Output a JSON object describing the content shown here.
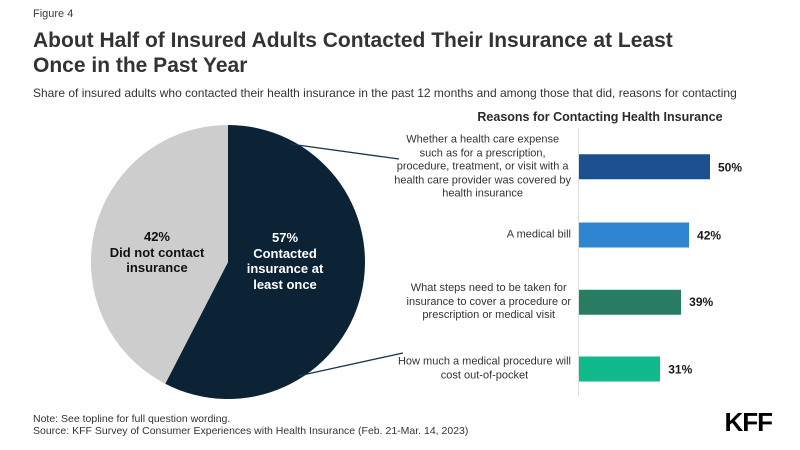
{
  "header": {
    "figure_label": "Figure 4",
    "title_lines": [
      "About Half of Insured Adults Contacted Their Insurance at Least",
      "Once in the Past Year"
    ],
    "subtitle": "Share of insured adults who contacted their health insurance in the past 12 months and among those that did, reasons for contacting"
  },
  "footer": {
    "note": "Note: See topline for full question wording.",
    "source": "Source: KFF Survey of Consumer Experiences with Health Insurance (Feb. 21-Mar. 14, 2023)",
    "logo_text": "KFF"
  },
  "colors": {
    "pie_contacted": "#0b2334",
    "pie_did_not_contact": "#cdcdcd",
    "bar_covered": "#1a508e",
    "bar_medical_bill": "#2e86d1",
    "bar_steps": "#287d63",
    "bar_cost": "#10ba8d",
    "callout_line": "#17364f",
    "axis_line": "#dedede"
  },
  "chart_data": [
    {
      "type": "pie",
      "start_angle_deg": 0,
      "direction": "clockwise",
      "slices": [
        {
          "label": "Contacted insurance at least once",
          "value": 57,
          "color": "#0b2334",
          "text_color": "#ffffff",
          "label_lines": [
            "57%",
            "Contacted",
            "insurance at",
            "least once"
          ]
        },
        {
          "label": "Did not contact insurance",
          "value": 42,
          "color": "#cdcdcd",
          "text_color": "#111111",
          "label_lines": [
            "42%",
            "Did not contact",
            "insurance"
          ]
        }
      ]
    },
    {
      "type": "bar",
      "orientation": "horizontal",
      "title": "Reasons for Contacting Health Insurance",
      "unit": "%",
      "xlim": [
        0,
        50
      ],
      "grid": false,
      "legend": false,
      "categories": [
        "Whether a health care expense such as for a prescription, procedure, treatment, or visit with a health care provider was covered by health insurance",
        "A medical bill",
        "What steps need to be taken for insurance to cover a procedure or prescription or medical visit",
        "How much a medical procedure will cost out-of-pocket"
      ],
      "category_lines": [
        [
          "Whether a health care expense",
          "such as for a prescription,",
          "procedure, treatment, or visit with a",
          "health care provider was covered by",
          "health insurance"
        ],
        [
          "A medical bill"
        ],
        [
          "What steps need to be taken for",
          "insurance to cover a procedure or",
          "prescription or medical visit"
        ],
        [
          "How much a medical procedure will",
          "cost out-of-pocket"
        ]
      ],
      "values": [
        50,
        42,
        39,
        31
      ],
      "value_labels": [
        "50%",
        "42%",
        "39%",
        "31%"
      ],
      "bar_colors": [
        "#1a508e",
        "#2e86d1",
        "#287d63",
        "#10ba8d"
      ]
    }
  ]
}
